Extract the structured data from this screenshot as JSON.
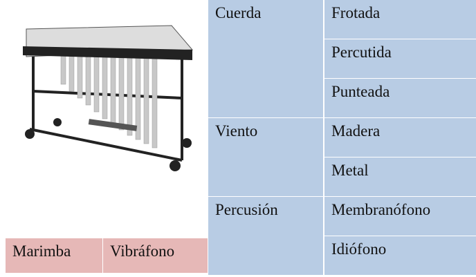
{
  "instrument_labels": [
    "Marimba",
    "Vibráfono"
  ],
  "table": {
    "groups": [
      {
        "name": "Cuerda",
        "items": [
          "Frotada",
          "Percutida",
          "Punteada"
        ]
      },
      {
        "name": "Viento",
        "items": [
          "Madera",
          "Metal"
        ]
      },
      {
        "name": "Percusión",
        "items": [
          "Membranófono",
          "Idiófono"
        ]
      }
    ]
  }
}
